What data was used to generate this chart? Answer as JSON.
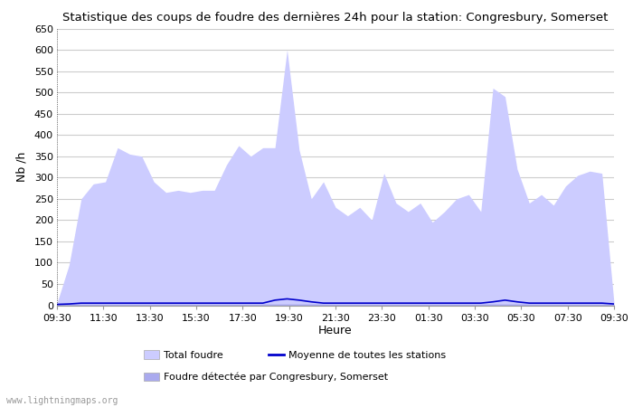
{
  "title": "Statistique des coups de foudre des dernières 24h pour la station: Congresbury, Somerset",
  "xlabel": "Heure",
  "ylabel": "Nb /h",
  "xlim_labels": [
    "09:30",
    "11:30",
    "13:30",
    "15:30",
    "17:30",
    "19:30",
    "21:30",
    "23:30",
    "01:30",
    "03:30",
    "05:30",
    "07:30",
    "09:30"
  ],
  "ylim": [
    0,
    650
  ],
  "yticks": [
    0,
    50,
    100,
    150,
    200,
    250,
    300,
    350,
    400,
    450,
    500,
    550,
    600,
    650
  ],
  "fill_color_total": "#ccccff",
  "fill_color_local": "#aaaaee",
  "line_color_mean": "#0000cc",
  "bg_color": "#ffffff",
  "watermark": "www.lightningmaps.org",
  "legend_total": "Total foudre",
  "legend_mean": "Moyenne de toutes les stations",
  "legend_local": "Foudre détectée par Congresbury, Somerset",
  "total_foudre": [
    5,
    95,
    250,
    285,
    290,
    370,
    355,
    350,
    290,
    265,
    270,
    265,
    270,
    270,
    330,
    375,
    350,
    370,
    370,
    600,
    365,
    250,
    290,
    230,
    210,
    230,
    200,
    310,
    240,
    220,
    240,
    195,
    220,
    250,
    260,
    220,
    510,
    490,
    320,
    240,
    260,
    235,
    280,
    305,
    315,
    310,
    5
  ],
  "local_foudre": [
    2,
    3,
    3,
    3,
    3,
    3,
    3,
    3,
    3,
    3,
    3,
    3,
    3,
    3,
    3,
    3,
    3,
    3,
    3,
    3,
    3,
    3,
    3,
    3,
    3,
    3,
    3,
    3,
    3,
    3,
    3,
    3,
    3,
    3,
    3,
    3,
    3,
    3,
    3,
    3,
    3,
    3,
    3,
    3,
    3,
    3,
    2
  ],
  "mean_stations": [
    2,
    3,
    5,
    5,
    5,
    5,
    5,
    5,
    5,
    5,
    5,
    5,
    5,
    5,
    5,
    5,
    5,
    5,
    12,
    15,
    12,
    8,
    5,
    5,
    5,
    5,
    5,
    5,
    5,
    5,
    5,
    5,
    5,
    5,
    5,
    5,
    8,
    12,
    8,
    5,
    5,
    5,
    5,
    5,
    5,
    5,
    3
  ]
}
